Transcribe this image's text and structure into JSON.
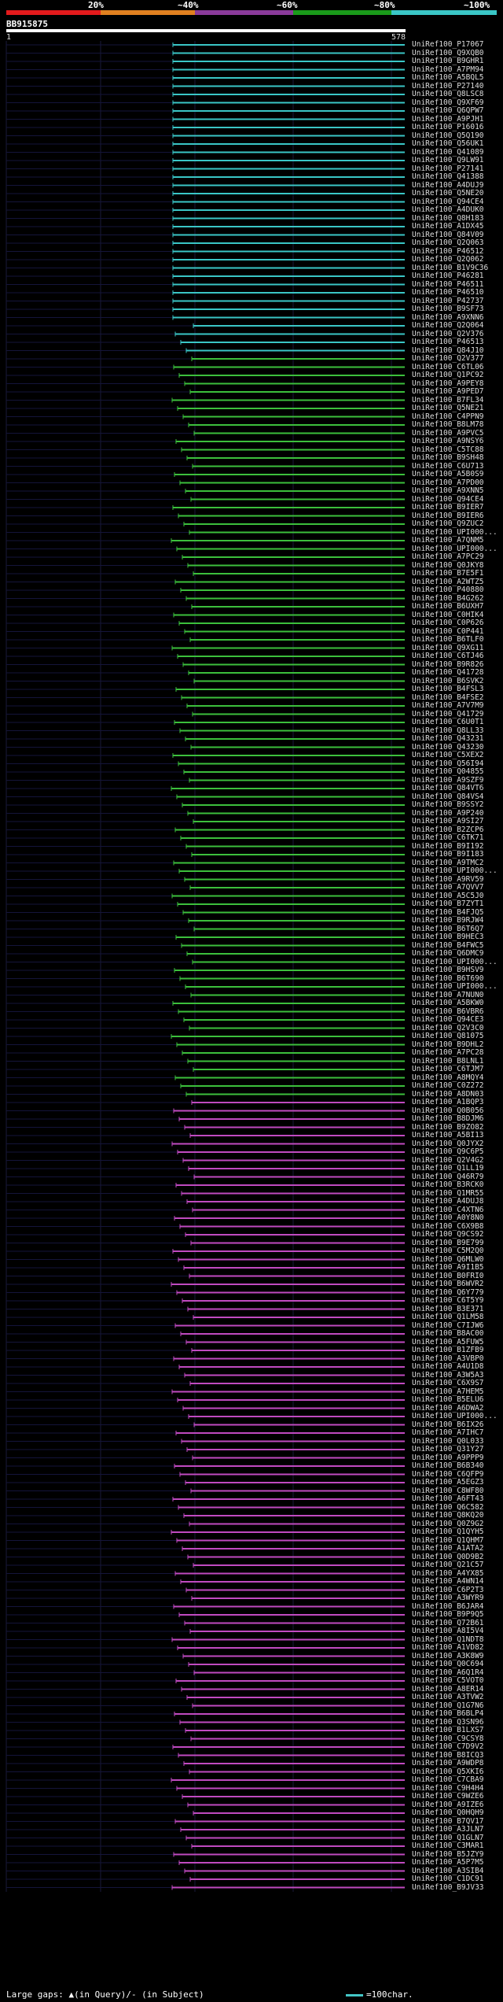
{
  "scale": {
    "labels": [
      "20%",
      "~40%",
      "~60%",
      "~80%",
      "~100%"
    ],
    "colors": [
      "#e31a1c",
      "#e08020",
      "#8a3a9a",
      "#1a9a1a",
      "#3ac6c6"
    ]
  },
  "query": {
    "id": "BB915875",
    "start": "1",
    "end": "578"
  },
  "footer": {
    "text": "Large gaps: ▲(in Query)/- (in Subject)",
    "legend": "=100char."
  },
  "hits": [
    "UniRef100_P17067",
    "UniRef100_Q9XQB0",
    "UniRef100_B9GHR1",
    "UniRef100_A7PM94",
    "UniRef100_A5BQL5",
    "UniRef100_P27140",
    "UniRef100_Q8LSC8",
    "UniRef100_Q9XF69",
    "UniRef100_Q6QPW7",
    "UniRef100_A9PJH1",
    "UniRef100_P16016",
    "UniRef100_Q5Q190",
    "UniRef100_Q56UK1",
    "UniRef100_Q41089",
    "UniRef100_Q9LW91",
    "UniRef100_P27141",
    "UniRef100_Q41388",
    "UniRef100_A4DUJ9",
    "UniRef100_Q5NE20",
    "UniRef100_Q94CE4",
    "UniRef100_A4DUK0",
    "UniRef100_Q8H183",
    "UniRef100_A1DX45",
    "UniRef100_Q84V09",
    "UniRef100_Q2Q063",
    "UniRef100_P46512",
    "UniRef100_Q2Q062",
    "UniRef100_B1V9C36",
    "UniRef100_P46281",
    "UniRef100_P46511",
    "UniRef100_P46510",
    "UniRef100_P42737",
    "UniRef100_B9SF73",
    "UniRef100_A9XNN6",
    "UniRef100_Q2Q064",
    "UniRef100_Q2V376",
    "UniRef100_P46513",
    "UniRef100_Q84J10",
    "UniRef100_Q2V377",
    "UniRef100_C6TL06",
    "UniRef100_Q1PC92",
    "UniRef100_A9PEY8",
    "UniRef100_A9PED7",
    "UniRef100_B7FL34",
    "UniRef100_Q5NE21",
    "UniRef100_C4PPN9",
    "UniRef100_B8LM78",
    "UniRef100_A9PVC5",
    "UniRef100_A9NSY6",
    "UniRef100_C5TC88",
    "UniRef100_B9SH48",
    "UniRef100_C6U713",
    "UniRef100_A5B0S9",
    "UniRef100_A7PD00",
    "UniRef100_A9XNN5",
    "UniRef100_Q94CE4",
    "UniRef100_B9IER7",
    "UniRef100_B9IER6",
    "UniRef100_Q9ZUC2",
    "UniRef100_UPI000...",
    "UniRef100_A7QNM5",
    "UniRef100_UPI000...",
    "UniRef100_A7PC29",
    "UniRef100_Q0JKY8",
    "UniRef100_B7E5F1",
    "UniRef100_A2WTZ5",
    "UniRef100_P40880",
    "UniRef100_B4G262",
    "UniRef100_B6UXH7",
    "UniRef100_C0HIK4",
    "UniRef100_C0P626",
    "UniRef100_C0P441",
    "UniRef100_B6TLF0",
    "UniRef100_Q9XG11",
    "UniRef100_C6TJ46",
    "UniRef100_B9R826",
    "UniRef100_Q41728",
    "UniRef100_B6SVK2",
    "UniRef100_B4FSL3",
    "UniRef100_B4FSE2",
    "UniRef100_A7V7M9",
    "UniRef100_Q41729",
    "UniRef100_C6U0T1",
    "UniRef100_Q8LL33",
    "UniRef100_Q43231",
    "UniRef100_Q43230",
    "UniRef100_C5XEX2",
    "UniRef100_Q56I94",
    "UniRef100_Q04855",
    "UniRef100_A9SZF9",
    "UniRef100_Q84VT6",
    "UniRef100_Q84VS4",
    "UniRef100_B9SSY2",
    "UniRef100_A9P240",
    "UniRef100_A9SI27",
    "UniRef100_B2ZCP6",
    "UniRef100_C6TK71",
    "UniRef100_B9I192",
    "UniRef100_B9I183",
    "UniRef100_A9TMC2",
    "UniRef100_UPI000...",
    "UniRef100_A9RV59",
    "UniRef100_A7QVV7",
    "UniRef100_A5C5J0",
    "UniRef100_B7ZYT1",
    "UniRef100_B4FJQ5",
    "UniRef100_B9RJW4",
    "UniRef100_B6T6Q7",
    "UniRef100_B9HEC3",
    "UniRef100_B4FWC5",
    "UniRef100_Q6DMC9",
    "UniRef100_UPI000...",
    "UniRef100_B9HSV9",
    "UniRef100_B6T690",
    "UniRef100_UPI000...",
    "UniRef100_A7NUN0",
    "UniRef100_A5BKW0",
    "UniRef100_B6VBR6",
    "UniRef100_Q94CE3",
    "UniRef100_Q2V3C0",
    "UniRef100_Q81075",
    "UniRef100_B9DHL2",
    "UniRef100_A7PC28",
    "UniRef100_B8LNL1",
    "UniRef100_C6TJM7",
    "UniRef100_A8MQY4",
    "UniRef100_C0Z272",
    "UniRef100_A8DN03",
    "UniRef100_A1BQP3",
    "UniRef100_Q0B056",
    "UniRef100_B8DJM6",
    "UniRef100_B9ZO82",
    "UniRef100_A5BI13",
    "UniRef100_Q0JYX2",
    "UniRef100_Q9C6P5",
    "UniRef100_Q2V4G2",
    "UniRef100_Q1LL19",
    "UniRef100_Q46R79",
    "UniRef100_B3RCK0",
    "UniRef100_Q1MR55",
    "UniRef100_A4DUJ8",
    "UniRef100_C4XTN6",
    "UniRef100_A0Y8N0",
    "UniRef100_C6X9B8",
    "UniRef100_Q9CS92",
    "UniRef100_B9E799",
    "UniRef100_C5M2Q0",
    "UniRef100_Q6MLW0",
    "UniRef100_A9I1B5",
    "UniRef100_B0FRI0",
    "UniRef100_B6WVR2",
    "UniRef100_Q6Y779",
    "UniRef100_C6T5Y9",
    "UniRef100_B3E371",
    "UniRef100_Q1LM58",
    "UniRef100_C7IJW6",
    "UniRef100_B8AC00",
    "UniRef100_A5FUW5",
    "UniRef100_B1ZFB9",
    "UniRef100_A3VBP0",
    "UniRef100_A4U1D8",
    "UniRef100_A3W5A3",
    "UniRef100_C6X9S7",
    "UniRef100_A7HEM5",
    "UniRef100_B5ELU6",
    "UniRef100_A6DWA2",
    "UniRef100_UPI000...",
    "UniRef100_B6IX26",
    "UniRef100_A7IHC7",
    "UniRef100_Q0L033",
    "UniRef100_Q31Y27",
    "UniRef100_A9PPP9",
    "UniRef100_B6B340",
    "UniRef100_C6QFP9",
    "UniRef100_A5EGZ3",
    "UniRef100_C8WF80",
    "UniRef100_A6FT43",
    "UniRef100_Q6C582",
    "UniRef100_Q8KQ20",
    "UniRef100_Q0Z9G2",
    "UniRef100_Q1QYH5",
    "UniRef100_Q1QHM7",
    "UniRef100_A1ATA2",
    "UniRef100_Q0D9B2",
    "UniRef100_Q21C57",
    "UniRef100_A4YX85",
    "UniRef100_A4WN14",
    "UniRef100_C6P2T3",
    "UniRef100_A3WYR9",
    "UniRef100_B6JAR4",
    "UniRef100_B9P9Q5",
    "UniRef100_Q72B61",
    "UniRef100_A8I5V4",
    "UniRef100_Q1NDT8",
    "UniRef100_A1VD82",
    "UniRef100_A3K8W9",
    "UniRef100_Q0C694",
    "UniRef100_A6Q1R4",
    "UniRef100_C5VOT0",
    "UniRef100_A8ER14",
    "UniRef100_A3TVW2",
    "UniRef100_Q1G7N6",
    "UniRef100_B6BLP4",
    "UniRef100_Q3SN96",
    "UniRef100_B1LXS7",
    "UniRef100_C9CSY8",
    "UniRef100_C7D9V2",
    "UniRef100_B8ICQ3",
    "UniRef100_A9WDP8",
    "UniRef100_Q5XKI6",
    "UniRef100_C7CBA9",
    "UniRef100_C9H4H4",
    "UniRef100_C9WZE6",
    "UniRef100_A9IZE6",
    "UniRef100_Q0HQH9",
    "UniRef100_B7QV17",
    "UniRef100_A3JLN7",
    "UniRef100_Q1GLN7",
    "UniRef100_C3MAR1",
    "UniRef100_B5JZY9",
    "UniRef100_A5P7M5",
    "UniRef100_A3SIB4",
    "UniRef100_C1DC91",
    "UniRef100_B9JV33"
  ]
}
